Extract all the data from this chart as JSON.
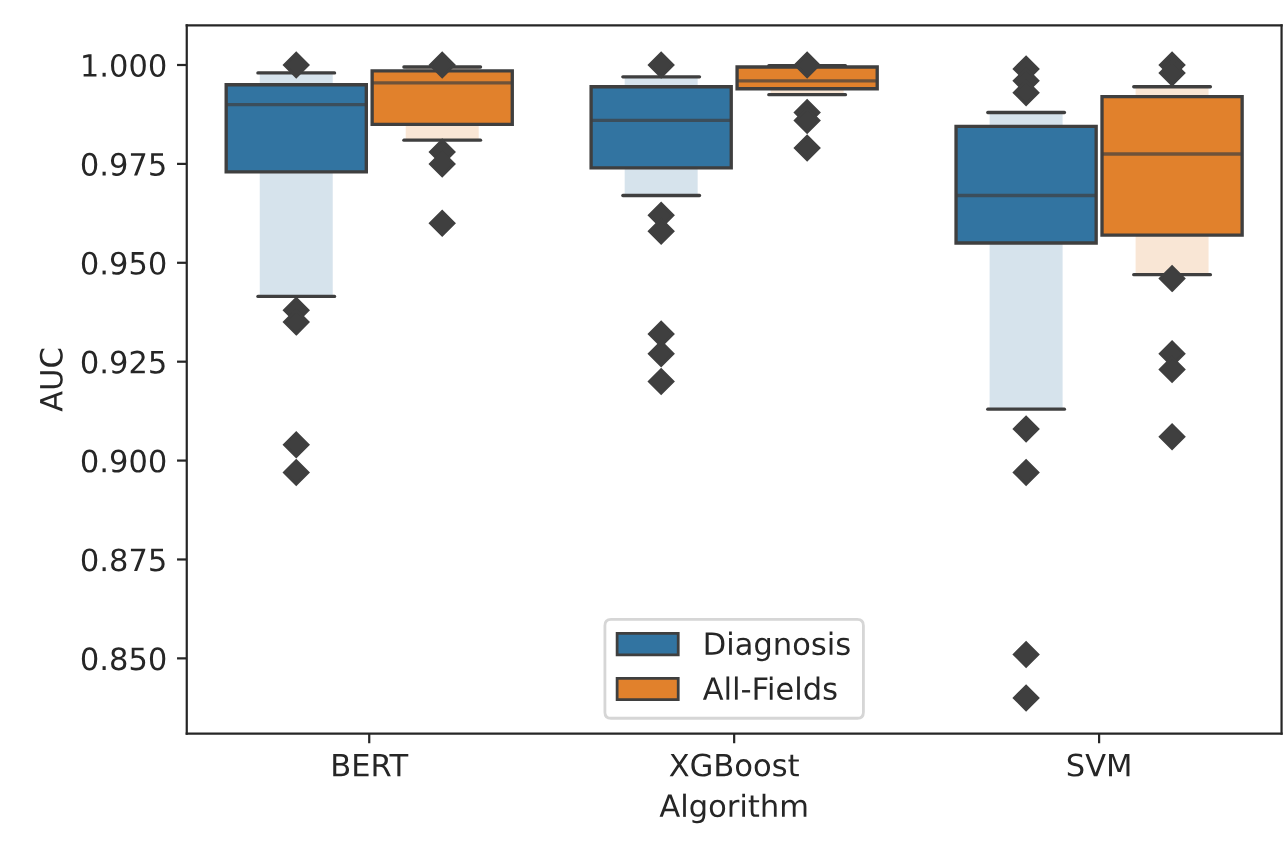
{
  "chart_data": {
    "type": "box",
    "xlabel": "Algorithm",
    "ylabel": "AUC",
    "categories": [
      "BERT",
      "XGBoost",
      "SVM"
    ],
    "ylim": [
      0.831,
      1.01
    ],
    "yticks": [
      {
        "value": 0.85,
        "label": "0.850"
      },
      {
        "value": 0.875,
        "label": "0.875"
      },
      {
        "value": 0.9,
        "label": "0.900"
      },
      {
        "value": 0.925,
        "label": "0.925"
      },
      {
        "value": 0.95,
        "label": "0.950"
      },
      {
        "value": 0.975,
        "label": "0.975"
      },
      {
        "value": 1.0,
        "label": "1.000"
      }
    ],
    "grid": false,
    "legend": "bottom",
    "marker": "diamond",
    "series": [
      {
        "name": "Diagnosis",
        "color": "#3274a1",
        "boxes": [
          {
            "low": 0.9415,
            "q1": 0.973,
            "median": 0.99,
            "q3": 0.995,
            "high": 0.998,
            "outliers": [
              1.0,
              0.938,
              0.935,
              0.904,
              0.897
            ]
          },
          {
            "low": 0.967,
            "q1": 0.974,
            "median": 0.986,
            "q3": 0.9945,
            "high": 0.997,
            "outliers": [
              1.0,
              0.962,
              0.958,
              0.932,
              0.927,
              0.92
            ]
          },
          {
            "low": 0.913,
            "q1": 0.955,
            "median": 0.967,
            "q3": 0.9845,
            "high": 0.988,
            "outliers": [
              0.999,
              0.996,
              0.993,
              0.908,
              0.897,
              0.851,
              0.84
            ]
          }
        ]
      },
      {
        "name": "All-Fields",
        "color": "#e1812c",
        "boxes": [
          {
            "low": 0.981,
            "q1": 0.985,
            "median": 0.9955,
            "q3": 0.9985,
            "high": 0.9995,
            "outliers": [
              1.0,
              0.978,
              0.975,
              0.96
            ]
          },
          {
            "low": 0.9925,
            "q1": 0.994,
            "median": 0.996,
            "q3": 0.9995,
            "high": 0.9998,
            "outliers": [
              1.0,
              0.988,
              0.986,
              0.979
            ]
          },
          {
            "low": 0.947,
            "q1": 0.957,
            "median": 0.9775,
            "q3": 0.992,
            "high": 0.9945,
            "outliers": [
              1.0,
              0.998,
              0.946,
              0.927,
              0.923,
              0.906
            ]
          }
        ]
      }
    ]
  }
}
